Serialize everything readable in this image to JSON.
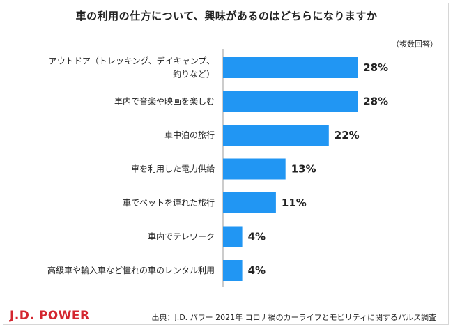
{
  "title": "車の利用の仕方について、興味があるのはどちらになりますか",
  "note": "（複数回答）",
  "brand": {
    "logo": "J.D. POWER",
    "color": "#d4262f"
  },
  "source": "出典：J.D. パワー 2021年 コロナ禍のカーライフとモビリティに関するパルス調査",
  "colors": {
    "bar": "#2196f3",
    "axis": "#999999"
  },
  "chart_data": {
    "type": "bar",
    "orientation": "horizontal",
    "categories": [
      [
        "アウトドア（トレッキング、デイキャンプ、",
        "釣りなど）"
      ],
      [
        "車内で音楽や映画を楽しむ"
      ],
      [
        "車中泊の旅行"
      ],
      [
        "車を利用した電力供給"
      ],
      [
        "車でペットを連れた旅行"
      ],
      [
        "車内でテレワーク"
      ],
      [
        "高級車や輸入車など憧れの車のレンタル利用"
      ]
    ],
    "values": [
      28,
      28,
      22,
      13,
      11,
      4,
      4
    ],
    "value_labels": [
      "28%",
      "28%",
      "22%",
      "13%",
      "11%",
      "4%",
      "4%"
    ],
    "unit": "%",
    "xlim": [
      0,
      30
    ],
    "grid": false
  }
}
